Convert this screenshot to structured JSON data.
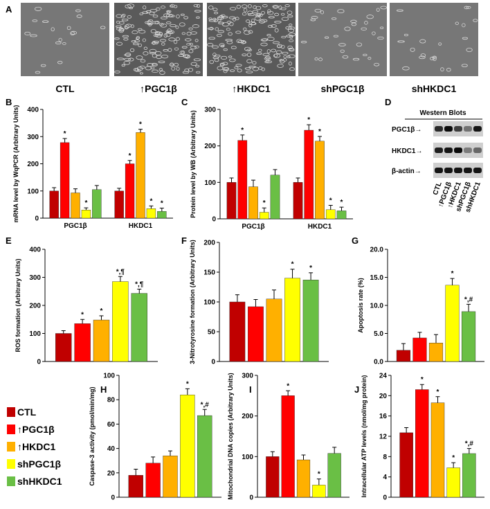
{
  "panel_a": {
    "letter": "A",
    "labels": [
      "CTL",
      "↑PGC1β",
      "↑HKDC1",
      "shPGC1β",
      "shHKDC1"
    ]
  },
  "legend": [
    {
      "label": "CTL",
      "color": "#c00000"
    },
    {
      "label": "↑PGC1β",
      "color": "#ff0000"
    },
    {
      "label": "↑HKDC1",
      "color": "#ffb000"
    },
    {
      "label": "shPGC1β",
      "color": "#ffff00"
    },
    {
      "label": "shHKDC1",
      "color": "#6abf45"
    }
  ],
  "western_blot": {
    "letter": "D",
    "title": "Western Blots",
    "rows": [
      "PGC1β→",
      "HKDC1→",
      "β-actin→"
    ],
    "lanes": [
      "CTL",
      "↑PGC1β",
      "↑HKDC1",
      "shPGC1β",
      "shHKDC1"
    ]
  },
  "chart_data": [
    {
      "type": "bar",
      "letter": "B",
      "ylabel": "mRNA level by WqPCR (Arbitrary Units)",
      "ylim": [
        0,
        400
      ],
      "yticks": [
        0,
        100,
        200,
        300,
        400
      ],
      "categories": [
        "PGC1β",
        "HKDC1"
      ],
      "values": [
        [
          100,
          278,
          93,
          30,
          105
        ],
        [
          100,
          200,
          315,
          35,
          25
        ]
      ],
      "errors": [
        [
          12,
          15,
          15,
          8,
          15
        ],
        [
          10,
          12,
          12,
          10,
          12
        ]
      ],
      "annotations": [
        [
          null,
          "*",
          null,
          "*",
          null
        ],
        [
          null,
          "*",
          "*",
          "*",
          "*"
        ]
      ]
    },
    {
      "type": "bar",
      "letter": "C",
      "ylabel": "Protein level by WB (Arbitrary Units)",
      "ylim": [
        0,
        300
      ],
      "yticks": [
        0,
        100,
        200,
        300
      ],
      "categories": [
        "PGC1β",
        "HKDC1"
      ],
      "values": [
        [
          100,
          215,
          88,
          18,
          120
        ],
        [
          100,
          243,
          213,
          25,
          22
        ]
      ],
      "errors": [
        [
          12,
          15,
          18,
          12,
          15
        ],
        [
          12,
          15,
          13,
          12,
          10
        ]
      ],
      "annotations": [
        [
          null,
          "*",
          null,
          "*",
          null
        ],
        [
          null,
          "*",
          "*",
          "*",
          "*"
        ]
      ]
    },
    {
      "type": "bar",
      "letter": "E",
      "ylabel": "ROS formation (Arbitrary Units)",
      "ylim": [
        0,
        400
      ],
      "yticks": [
        0,
        100,
        200,
        300,
        400
      ],
      "values": [
        100,
        135,
        148,
        285,
        243
      ],
      "errors": [
        10,
        15,
        15,
        18,
        15
      ],
      "annotations": [
        null,
        "*",
        "*",
        "*,¶",
        "*,¶"
      ]
    },
    {
      "type": "bar",
      "letter": "F",
      "ylabel": "3-Nitrotyrosine formation (Arbitrary Units)",
      "ylim": [
        0,
        200
      ],
      "yticks": [
        0,
        50,
        100,
        150,
        200
      ],
      "values": [
        100,
        92,
        105,
        140,
        137
      ],
      "errors": [
        12,
        12,
        15,
        15,
        12
      ],
      "annotations": [
        null,
        null,
        null,
        "*",
        "*"
      ]
    },
    {
      "type": "bar",
      "letter": "G",
      "ylabel": "Apoptosis rate (%)",
      "ylim": [
        0,
        20
      ],
      "yticks": [
        {
          "value": 0,
          "label": "0.0"
        },
        {
          "value": 5,
          "label": "5.0"
        },
        {
          "value": 10,
          "label": "10.0"
        },
        {
          "value": 15,
          "label": "15.0"
        },
        {
          "value": 20,
          "label": "20.0"
        }
      ],
      "values": [
        2.0,
        4.2,
        3.3,
        13.6,
        8.9
      ],
      "errors": [
        1.2,
        1.0,
        1.5,
        1.2,
        1.3
      ],
      "annotations": [
        null,
        null,
        null,
        "*",
        "*,#"
      ]
    },
    {
      "type": "bar",
      "letter": "H",
      "ylabel": "Caspase-3 activity (pmol/min/mg)",
      "ylim": [
        0,
        100
      ],
      "yticks": [
        0,
        20,
        40,
        60,
        80,
        100
      ],
      "values": [
        18,
        28,
        34,
        84,
        67
      ],
      "errors": [
        5,
        5,
        4,
        5,
        5
      ],
      "annotations": [
        null,
        null,
        null,
        "*",
        "*,#"
      ]
    },
    {
      "type": "bar",
      "letter": "I",
      "ylabel": "Mitochondrial DNA copies (Arbitrary Units)",
      "ylim": [
        0,
        300
      ],
      "yticks": [
        0,
        100,
        200,
        300
      ],
      "values": [
        100,
        250,
        92,
        30,
        108
      ],
      "errors": [
        12,
        12,
        12,
        15,
        15
      ],
      "annotations": [
        null,
        "*",
        null,
        "*",
        null
      ]
    },
    {
      "type": "bar",
      "letter": "J",
      "ylabel": "Intracellular ATP levels (nmol/mg protein)",
      "ylim": [
        0,
        24
      ],
      "yticks": [
        0,
        4,
        8,
        12,
        16,
        20,
        24
      ],
      "values": [
        12.7,
        21.2,
        18.6,
        5.8,
        8.6
      ],
      "errors": [
        1.0,
        1.0,
        1.2,
        1.0,
        1.0
      ],
      "annotations": [
        null,
        "*",
        "*",
        "*",
        "*,#"
      ]
    }
  ]
}
